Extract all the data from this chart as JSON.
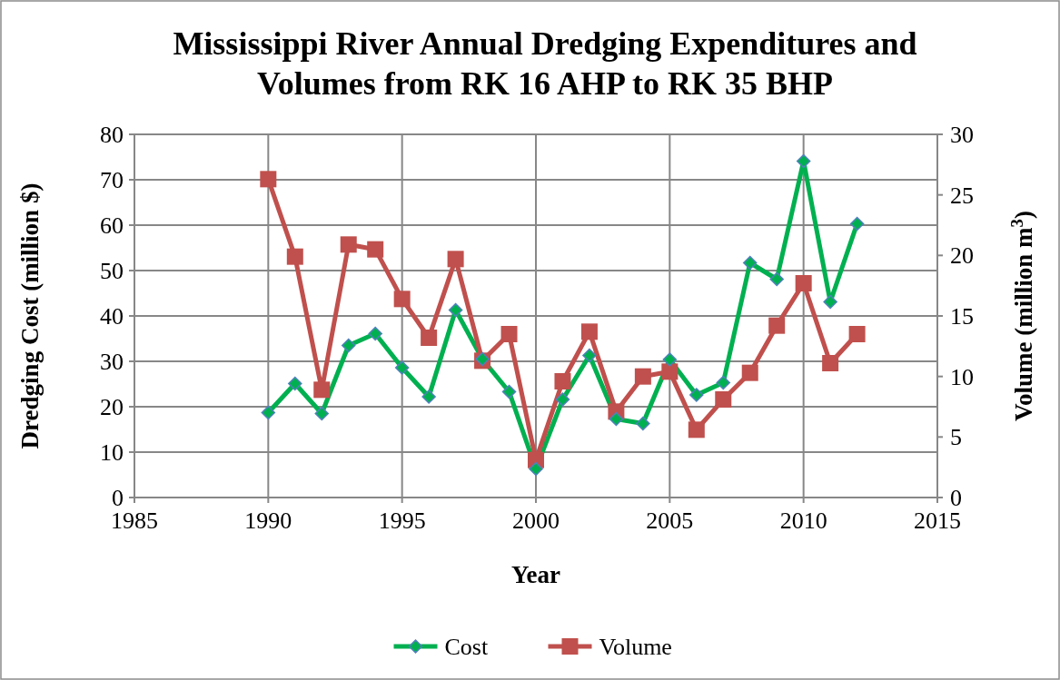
{
  "chart_data": {
    "type": "line",
    "title": "Mississippi River Annual Dredging Expenditures and Volumes from RK 16 AHP to RK 35 BHP",
    "xlabel": "Year",
    "ylabel": "Dredging Cost (million $)",
    "y2label": "Volume (million m$^{3}$)",
    "x": [
      1990,
      1991,
      1992,
      1993,
      1994,
      1995,
      1996,
      1997,
      1998,
      1999,
      2000,
      2001,
      2002,
      2003,
      2004,
      2005,
      2006,
      2007,
      2008,
      2009,
      2010,
      2011,
      2012
    ],
    "xlim": [
      1985,
      2015
    ],
    "xticks": [
      1985,
      1990,
      1995,
      2000,
      2005,
      2010,
      2015
    ],
    "ylim": [
      0,
      80
    ],
    "yticks": [
      0,
      10,
      20,
      30,
      40,
      50,
      60,
      70,
      80
    ],
    "y2lim": [
      0,
      30
    ],
    "y2ticks": [
      0,
      5,
      10,
      15,
      20,
      25,
      30
    ],
    "grid": true,
    "legend": "bottom",
    "line_style": "solid",
    "series": [
      {
        "name": "Cost",
        "color": "#00b050",
        "marker": "diamond",
        "values": [
          18.7,
          25.1,
          18.5,
          33.5,
          36.1,
          28.6,
          22.2,
          41.3,
          30.5,
          23.3,
          6.3,
          21.6,
          31.3,
          17.3,
          16.3,
          30.4,
          22.6,
          25.3,
          51.7,
          48.1,
          74.1,
          43.1,
          60.3
        ]
      },
      {
        "name": "Volume",
        "color": "#c0504d",
        "marker": "square",
        "axis": "y2",
        "values": [
          26.3,
          19.9,
          8.9,
          20.9,
          20.5,
          16.4,
          13.2,
          19.7,
          11.3,
          13.5,
          3.1,
          9.6,
          13.7,
          7.1,
          10.0,
          10.4,
          5.6,
          8.1,
          10.3,
          14.2,
          17.7,
          11.1,
          13.5
        ]
      }
    ]
  }
}
